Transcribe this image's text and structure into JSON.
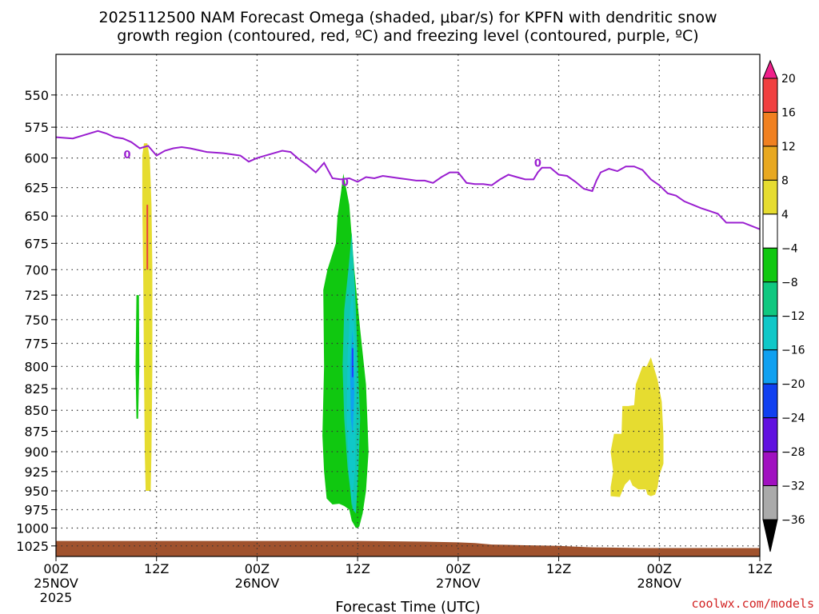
{
  "chart_data": {
    "type": "contour",
    "title_line1": "2025112500 NAM Forecast Omega (shaded, μbar/s) for KPFN with dendritic snow",
    "title_line2": "growth region (contoured, red, ºC) and freezing level (contoured, purple, ºC)",
    "xlabel": "Forecast Time (UTC)",
    "ylabel": "",
    "credit": "coolwx.com/models",
    "x_ticks": [
      {
        "hour": 0,
        "line1": "00Z",
        "line2": "25NOV",
        "line3": "2025"
      },
      {
        "hour": 12,
        "line1": "12Z",
        "line2": "",
        "line3": ""
      },
      {
        "hour": 24,
        "line1": "00Z",
        "line2": "26NOV",
        "line3": ""
      },
      {
        "hour": 36,
        "line1": "12Z",
        "line2": "",
        "line3": ""
      },
      {
        "hour": 48,
        "line1": "00Z",
        "line2": "27NOV",
        "line3": ""
      },
      {
        "hour": 60,
        "line1": "12Z",
        "line2": "",
        "line3": ""
      },
      {
        "hour": 72,
        "line1": "00Z",
        "line2": "28NOV",
        "line3": ""
      },
      {
        "hour": 84,
        "line1": "12Z",
        "line2": "",
        "line3": ""
      }
    ],
    "xlim_hours": [
      0,
      84
    ],
    "y_ticks": [
      "550",
      "575",
      "600",
      "625",
      "650",
      "675",
      "700",
      "725",
      "750",
      "775",
      "800",
      "825",
      "850",
      "875",
      "900",
      "925",
      "950",
      "975",
      "1000",
      "1025"
    ],
    "y_tick_values": [
      550,
      575,
      600,
      625,
      650,
      675,
      700,
      725,
      750,
      775,
      800,
      825,
      850,
      875,
      900,
      925,
      950,
      975,
      1000,
      1025
    ],
    "ylim_hpa": [
      520,
      1040
    ],
    "y_scale": "log",
    "grid": "dotted",
    "colorbar": {
      "labels": [
        "20",
        "16",
        "12",
        "8",
        "4",
        "−4",
        "−8",
        "−12",
        "−16",
        "−20",
        "−24",
        "−28",
        "−32",
        "−36"
      ],
      "colors": [
        "#f0208a",
        "#f04040",
        "#f08020",
        "#e8a820",
        "#e6dc30",
        "#ffffff",
        "#10c810",
        "#10c880",
        "#10c8c8",
        "#10a0f0",
        "#1040f0",
        "#6010e0",
        "#a010c0",
        "#aaaaaa",
        "#000000"
      ]
    },
    "freezing_level": {
      "color": "#9a1fd0",
      "label": "0",
      "label_points": [
        [
          8.5,
          597
        ],
        [
          34.5,
          620
        ],
        [
          57.5,
          604
        ]
      ],
      "points": [
        [
          0,
          583
        ],
        [
          2,
          584
        ],
        [
          4,
          580
        ],
        [
          5,
          578
        ],
        [
          6,
          580
        ],
        [
          7,
          583
        ],
        [
          8,
          584
        ],
        [
          9,
          587
        ],
        [
          10,
          592
        ],
        [
          11,
          590
        ],
        [
          12,
          598
        ],
        [
          13,
          594
        ],
        [
          14,
          592
        ],
        [
          15,
          591
        ],
        [
          16,
          592
        ],
        [
          18,
          595
        ],
        [
          20,
          596
        ],
        [
          22,
          598
        ],
        [
          23,
          603
        ],
        [
          24,
          600
        ],
        [
          25,
          598
        ],
        [
          26,
          596
        ],
        [
          27,
          594
        ],
        [
          28,
          595
        ],
        [
          29,
          601
        ],
        [
          30,
          606
        ],
        [
          31,
          612
        ],
        [
          32,
          604
        ],
        [
          33,
          617
        ],
        [
          34,
          618
        ],
        [
          35,
          617
        ],
        [
          36,
          620
        ],
        [
          37,
          616
        ],
        [
          38,
          617
        ],
        [
          39,
          615
        ],
        [
          40,
          616
        ],
        [
          41,
          617
        ],
        [
          42,
          618
        ],
        [
          43,
          619
        ],
        [
          44,
          619
        ],
        [
          45,
          621
        ],
        [
          46,
          616
        ],
        [
          47,
          612
        ],
        [
          48,
          612
        ],
        [
          49,
          621
        ],
        [
          50,
          622
        ],
        [
          51,
          622
        ],
        [
          52,
          623
        ],
        [
          53,
          618
        ],
        [
          54,
          614
        ],
        [
          55,
          616
        ],
        [
          56,
          618
        ],
        [
          57,
          618
        ],
        [
          57.5,
          612
        ],
        [
          58,
          608
        ],
        [
          59,
          608
        ],
        [
          60,
          614
        ],
        [
          61,
          615
        ],
        [
          62,
          620
        ],
        [
          63,
          626
        ],
        [
          64,
          628
        ],
        [
          64.5,
          619
        ],
        [
          65,
          612
        ],
        [
          66,
          609
        ],
        [
          67,
          611
        ],
        [
          68,
          607
        ],
        [
          69,
          607
        ],
        [
          70,
          610
        ],
        [
          71,
          618
        ],
        [
          72,
          623
        ],
        [
          73,
          630
        ],
        [
          74,
          632
        ],
        [
          75,
          637
        ],
        [
          77,
          643
        ],
        [
          79,
          648
        ],
        [
          80,
          656
        ],
        [
          82,
          656
        ],
        [
          84,
          662
        ]
      ]
    },
    "omega_regions": [
      {
        "name": "weak-lift-early-hours",
        "value_range": "4 to 8",
        "color": "#e6dc30",
        "points": [
          [
            10.3,
            598
          ],
          [
            10.5,
            588
          ],
          [
            10.9,
            588
          ],
          [
            11.2,
            600
          ],
          [
            11.4,
            640
          ],
          [
            11.5,
            700
          ],
          [
            11.5,
            800
          ],
          [
            11.4,
            900
          ],
          [
            11.3,
            950
          ],
          [
            10.7,
            950
          ],
          [
            10.6,
            900
          ],
          [
            10.5,
            800
          ],
          [
            10.4,
            700
          ],
          [
            10.3,
            640
          ]
        ]
      },
      {
        "name": "weak-sink-early-hours",
        "value_range": "-4 to -8",
        "color": "#10c810",
        "points": [
          [
            9.6,
            725
          ],
          [
            9.9,
            725
          ],
          [
            9.95,
            800
          ],
          [
            9.8,
            860
          ],
          [
            9.6,
            860
          ],
          [
            9.5,
            800
          ]
        ]
      },
      {
        "name": "main-sink-26nov-green",
        "value_range": "-4 to -8",
        "color": "#10c810",
        "points": [
          [
            34.3,
            613
          ],
          [
            35.0,
            640
          ],
          [
            35.6,
            700
          ],
          [
            36.3,
            760
          ],
          [
            37.0,
            820
          ],
          [
            37.2,
            870
          ],
          [
            37.3,
            900
          ],
          [
            37.0,
            950
          ],
          [
            36.6,
            980
          ],
          [
            36.2,
            998
          ],
          [
            35.8,
            1000
          ],
          [
            35.3,
            990
          ],
          [
            35.0,
            975
          ],
          [
            34.4,
            970
          ],
          [
            33.8,
            967
          ],
          [
            33.0,
            968
          ],
          [
            32.3,
            960
          ],
          [
            32.0,
            925
          ],
          [
            31.8,
            880
          ],
          [
            32.0,
            800
          ],
          [
            31.9,
            720
          ],
          [
            32.4,
            700
          ],
          [
            33.4,
            675
          ],
          [
            33.6,
            650
          ],
          [
            34.0,
            630
          ]
        ]
      },
      {
        "name": "main-sink-26nov-teal",
        "value_range": "-8 to -12",
        "color": "#10c8b0",
        "points": [
          [
            35.3,
            665
          ],
          [
            35.7,
            720
          ],
          [
            36.0,
            790
          ],
          [
            36.3,
            860
          ],
          [
            36.1,
            920
          ],
          [
            35.8,
            980
          ],
          [
            35.4,
            975
          ],
          [
            34.8,
            920
          ],
          [
            34.4,
            860
          ],
          [
            34.2,
            800
          ],
          [
            34.4,
            740
          ],
          [
            34.9,
            700
          ]
        ]
      },
      {
        "name": "main-sink-26nov-cyan",
        "value_range": "-12 to -16",
        "color": "#10c8c8",
        "points": [
          [
            35.4,
            720
          ],
          [
            35.7,
            780
          ],
          [
            35.8,
            850
          ],
          [
            35.7,
            920
          ],
          [
            35.3,
            970
          ],
          [
            35.0,
            930
          ],
          [
            34.7,
            860
          ],
          [
            34.8,
            790
          ],
          [
            35.1,
            740
          ]
        ]
      },
      {
        "name": "main-sink-26nov-blue",
        "value_range": "-16 to -20",
        "color": "#10a0f0",
        "points": [
          [
            35.4,
            760
          ],
          [
            35.6,
            830
          ],
          [
            35.4,
            880
          ],
          [
            35.2,
            860
          ],
          [
            35.1,
            800
          ]
        ]
      },
      {
        "name": "lift-28nov",
        "value_range": "4 to 8",
        "color": "#e6dc30",
        "points": [
          [
            71.0,
            790
          ],
          [
            71.8,
            815
          ],
          [
            72.3,
            840
          ],
          [
            72.5,
            880
          ],
          [
            72.5,
            915
          ],
          [
            72.0,
            930
          ],
          [
            71.8,
            945
          ],
          [
            71.5,
            955
          ],
          [
            71.0,
            957
          ],
          [
            70.6,
            955
          ],
          [
            70.4,
            948
          ],
          [
            69.5,
            948
          ],
          [
            68.8,
            943
          ],
          [
            68.5,
            935
          ],
          [
            67.9,
            942
          ],
          [
            67.3,
            958
          ],
          [
            66.2,
            957
          ],
          [
            66.2,
            945
          ],
          [
            66.5,
            925
          ],
          [
            66.2,
            900
          ],
          [
            66.6,
            878
          ],
          [
            67.5,
            878
          ],
          [
            67.6,
            845
          ],
          [
            68.3,
            845
          ],
          [
            69.0,
            844
          ],
          [
            69.2,
            820
          ],
          [
            70.0,
            800
          ],
          [
            70.5,
            800
          ]
        ]
      }
    ],
    "dgz_lines": [
      {
        "color": "#e84040",
        "points": [
          [
            10.9,
            640
          ],
          [
            10.9,
            700
          ]
        ]
      },
      {
        "color": "#2040ff",
        "points": [
          [
            35.4,
            780
          ],
          [
            35.4,
            812
          ]
        ]
      }
    ],
    "surface_pressure": {
      "color": "#a0522d",
      "points": [
        [
          0,
          1018
        ],
        [
          12,
          1018
        ],
        [
          24,
          1018
        ],
        [
          36,
          1018
        ],
        [
          44,
          1019
        ],
        [
          48,
          1020
        ],
        [
          50,
          1021
        ],
        [
          52,
          1023
        ],
        [
          56,
          1024
        ],
        [
          60,
          1025
        ],
        [
          62,
          1026
        ],
        [
          64,
          1027
        ],
        [
          70,
          1028
        ],
        [
          76,
          1028
        ],
        [
          80,
          1028
        ],
        [
          84,
          1028
        ]
      ]
    }
  }
}
